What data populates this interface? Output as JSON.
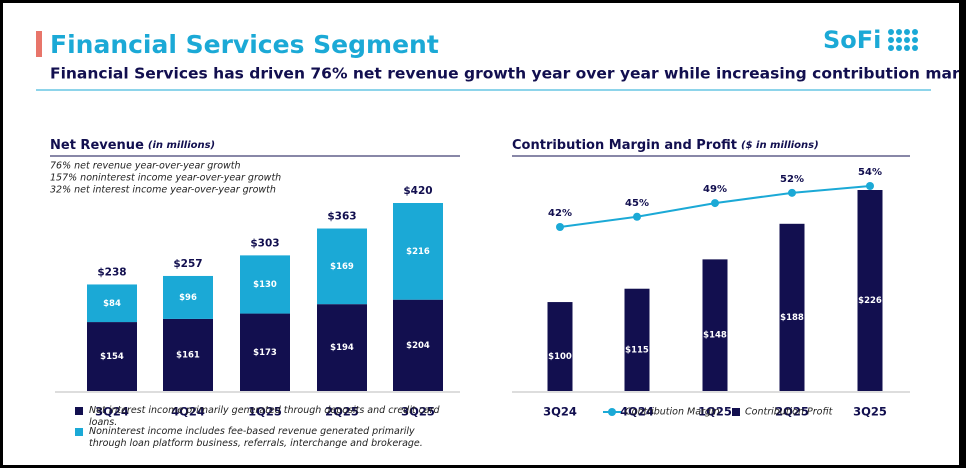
{
  "header": {
    "title": "Financial Services Segment",
    "subtitle": "Financial Services has driven 76% net revenue growth year over year while increasing contribution margin",
    "logo": "SoFi"
  },
  "chart_data": [
    {
      "type": "stacked_bar",
      "title": "Net Revenue",
      "title_note": "(in millions)",
      "notes": [
        "76% net revenue year-over-year growth",
        "157% noninterest income year-over-year growth",
        "32% net interest income year-over-year growth"
      ],
      "categories": [
        "3Q24",
        "4Q24",
        "1Q25",
        "2Q25",
        "3Q25"
      ],
      "series": [
        {
          "name": "Net interest income primarily generated through deposits and credit card loans.",
          "color": "#120f4f",
          "values": [
            154,
            161,
            173,
            194,
            204
          ],
          "value_labels": [
            "$154",
            "$161",
            "$173",
            "$194",
            "$204"
          ]
        },
        {
          "name": "Noninterest income includes fee-based revenue generated primarily through loan platform business, referrals, interchange and brokerage.",
          "color": "#1ba9d6",
          "values": [
            84,
            96,
            130,
            169,
            216
          ],
          "value_labels": [
            "$84",
            "$96",
            "$130",
            "$169",
            "$216"
          ]
        }
      ],
      "totals": [
        238,
        257,
        303,
        363,
        420
      ],
      "total_labels": [
        "$238",
        "$257",
        "$303",
        "$363",
        "$420"
      ]
    },
    {
      "type": "bar_line",
      "title": "Contribution Margin and Profit",
      "title_note": "($ in millions)",
      "categories": [
        "3Q24",
        "4Q24",
        "1Q25",
        "2Q25",
        "3Q25"
      ],
      "series": [
        {
          "name": "Contribution Margin",
          "type": "line",
          "color": "#1ba9d6",
          "values": [
            42,
            45,
            49,
            52,
            54
          ],
          "value_labels": [
            "42%",
            "45%",
            "49%",
            "52%",
            "54%"
          ]
        },
        {
          "name": "Contribution Profit",
          "type": "bar",
          "color": "#120f4f",
          "values": [
            100,
            115,
            148,
            188,
            226
          ],
          "value_labels": [
            "$100",
            "$115",
            "$148",
            "$188",
            "$226"
          ]
        }
      ]
    }
  ]
}
